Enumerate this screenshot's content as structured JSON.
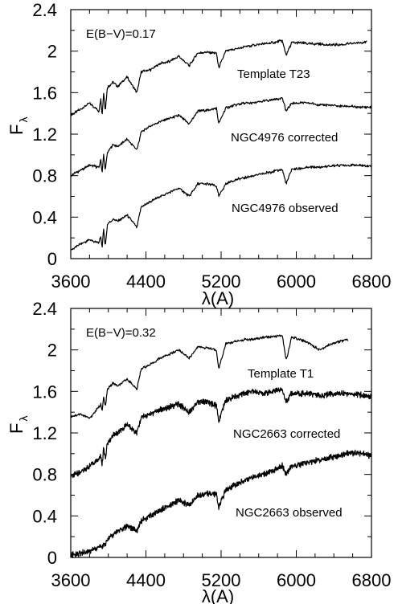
{
  "chart_data": [
    {
      "type": "line",
      "annotation": "E(B−V)=0.17",
      "xlabel": "λ(A)",
      "ylabel": "Fλ",
      "ylabel_main": "F",
      "ylabel_sub": "λ",
      "xlim": [
        3600,
        6800
      ],
      "ylim": [
        0,
        2.4
      ],
      "xticks": [
        "3600",
        "4400",
        "5200",
        "6000",
        "6800"
      ],
      "yticks": [
        "0",
        "0.4",
        "0.8",
        "1.2",
        "1.6",
        "2",
        "2.4"
      ],
      "grid": false,
      "series": [
        {
          "name": "Template T23",
          "x": [
            3600,
            3700,
            3800,
            3900,
            3920,
            3933,
            3950,
            3968,
            3990,
            4050,
            4100,
            4200,
            4304,
            4350,
            4450,
            4550,
            4650,
            4750,
            4861,
            4950,
            5050,
            5150,
            5175,
            5250,
            5350,
            5450,
            5550,
            5650,
            5750,
            5850,
            5893,
            5950,
            6050,
            6150,
            6250,
            6350,
            6450,
            6550,
            6650,
            6750
          ],
          "y": [
            1.38,
            1.44,
            1.5,
            1.42,
            1.55,
            1.37,
            1.6,
            1.43,
            1.65,
            1.7,
            1.66,
            1.75,
            1.6,
            1.8,
            1.82,
            1.88,
            1.9,
            1.95,
            1.86,
            1.98,
            1.99,
            1.98,
            1.84,
            2.0,
            2.02,
            2.04,
            2.06,
            2.07,
            2.08,
            2.1,
            1.96,
            2.08,
            2.08,
            2.07,
            2.07,
            2.06,
            2.06,
            2.07,
            2.08,
            2.09
          ]
        },
        {
          "name": "NGC4976 corrected",
          "x": [
            3600,
            3700,
            3800,
            3900,
            3920,
            3933,
            3950,
            3968,
            3990,
            4050,
            4100,
            4200,
            4304,
            4350,
            4450,
            4550,
            4650,
            4750,
            4861,
            4950,
            5050,
            5150,
            5175,
            5250,
            5350,
            5450,
            5550,
            5650,
            5750,
            5850,
            5893,
            5950,
            6050,
            6150,
            6250,
            6350,
            6450,
            6550,
            6650,
            6800
          ],
          "y": [
            0.8,
            0.85,
            0.9,
            0.88,
            0.95,
            0.82,
            1.0,
            0.85,
            1.02,
            1.1,
            1.08,
            1.15,
            1.05,
            1.22,
            1.28,
            1.32,
            1.35,
            1.38,
            1.3,
            1.42,
            1.43,
            1.45,
            1.3,
            1.45,
            1.48,
            1.5,
            1.5,
            1.52,
            1.53,
            1.55,
            1.42,
            1.5,
            1.5,
            1.5,
            1.48,
            1.48,
            1.47,
            1.47,
            1.46,
            1.46
          ]
        },
        {
          "name": "NGC4976 observed",
          "x": [
            3600,
            3700,
            3800,
            3900,
            3920,
            3933,
            3950,
            3968,
            3990,
            4050,
            4100,
            4200,
            4304,
            4350,
            4450,
            4550,
            4650,
            4750,
            4861,
            4950,
            5050,
            5150,
            5175,
            5250,
            5350,
            5450,
            5550,
            5650,
            5750,
            5850,
            5893,
            5950,
            6050,
            6150,
            6250,
            6350,
            6450,
            6550,
            6650,
            6800
          ],
          "y": [
            0.08,
            0.14,
            0.18,
            0.15,
            0.22,
            0.1,
            0.28,
            0.12,
            0.33,
            0.38,
            0.36,
            0.42,
            0.3,
            0.5,
            0.55,
            0.6,
            0.64,
            0.68,
            0.6,
            0.72,
            0.72,
            0.7,
            0.6,
            0.72,
            0.76,
            0.78,
            0.8,
            0.82,
            0.84,
            0.86,
            0.72,
            0.86,
            0.87,
            0.88,
            0.88,
            0.89,
            0.9,
            0.9,
            0.9,
            0.89
          ]
        }
      ]
    },
    {
      "type": "line",
      "annotation": "E(B−V)=0.32",
      "xlabel": "λ(A)",
      "ylabel": "Fλ",
      "ylabel_main": "F",
      "ylabel_sub": "λ",
      "xlim": [
        3600,
        6800
      ],
      "ylim": [
        0,
        2.4
      ],
      "xticks": [
        "3600",
        "4400",
        "5200",
        "6000",
        "6800"
      ],
      "yticks": [
        "0",
        "0.4",
        "0.8",
        "1.2",
        "1.6",
        "2",
        "2.4"
      ],
      "grid": false,
      "series": [
        {
          "name": "Template T1",
          "x": [
            3600,
            3700,
            3800,
            3900,
            3920,
            3933,
            3950,
            3968,
            3990,
            4050,
            4100,
            4200,
            4304,
            4350,
            4450,
            4550,
            4650,
            4750,
            4861,
            4950,
            5050,
            5150,
            5175,
            5250,
            5350,
            5450,
            5550,
            5650,
            5750,
            5850,
            5893,
            5950,
            6050,
            6150,
            6250,
            6350,
            6450,
            6550
          ],
          "y": [
            1.36,
            1.38,
            1.34,
            1.45,
            1.48,
            1.4,
            1.55,
            1.45,
            1.62,
            1.68,
            1.65,
            1.72,
            1.62,
            1.82,
            1.86,
            1.92,
            1.96,
            2.0,
            1.92,
            2.03,
            2.02,
            2.0,
            1.82,
            2.06,
            2.08,
            2.1,
            2.1,
            2.12,
            2.13,
            2.14,
            1.9,
            2.12,
            2.1,
            2.06,
            2.0,
            2.05,
            2.08,
            2.1
          ]
        },
        {
          "name": "NGC2663 corrected",
          "x": [
            3600,
            3700,
            3800,
            3900,
            3920,
            3933,
            3950,
            3968,
            3990,
            4050,
            4100,
            4200,
            4304,
            4350,
            4450,
            4550,
            4650,
            4750,
            4861,
            4950,
            5050,
            5150,
            5175,
            5250,
            5350,
            5450,
            5550,
            5650,
            5750,
            5850,
            5893,
            5950,
            6050,
            6150,
            6250,
            6350,
            6450,
            6550,
            6650,
            6800
          ],
          "y": [
            0.78,
            0.82,
            0.88,
            0.95,
            0.98,
            0.9,
            1.05,
            0.95,
            1.1,
            1.18,
            1.2,
            1.28,
            1.2,
            1.35,
            1.38,
            1.42,
            1.45,
            1.48,
            1.4,
            1.5,
            1.5,
            1.46,
            1.32,
            1.52,
            1.55,
            1.58,
            1.6,
            1.58,
            1.6,
            1.62,
            1.5,
            1.58,
            1.58,
            1.58,
            1.56,
            1.57,
            1.58,
            1.58,
            1.57,
            1.55
          ]
        },
        {
          "name": "NGC2663 observed",
          "x": [
            3600,
            3700,
            3800,
            3900,
            3920,
            3933,
            3950,
            3968,
            3990,
            4050,
            4100,
            4200,
            4304,
            4350,
            4450,
            4550,
            4650,
            4750,
            4861,
            4950,
            5050,
            5150,
            5175,
            5250,
            5350,
            5450,
            5550,
            5650,
            5750,
            5850,
            5893,
            5950,
            6050,
            6150,
            6250,
            6350,
            6450,
            6550,
            6650,
            6800
          ],
          "y": [
            0.02,
            0.04,
            0.06,
            0.1,
            0.12,
            0.08,
            0.15,
            0.12,
            0.18,
            0.22,
            0.25,
            0.3,
            0.26,
            0.35,
            0.4,
            0.46,
            0.5,
            0.55,
            0.5,
            0.6,
            0.62,
            0.6,
            0.48,
            0.65,
            0.7,
            0.74,
            0.78,
            0.8,
            0.84,
            0.88,
            0.8,
            0.88,
            0.9,
            0.92,
            0.94,
            0.96,
            0.98,
            1.0,
            1.01,
            0.98
          ]
        }
      ]
    }
  ]
}
